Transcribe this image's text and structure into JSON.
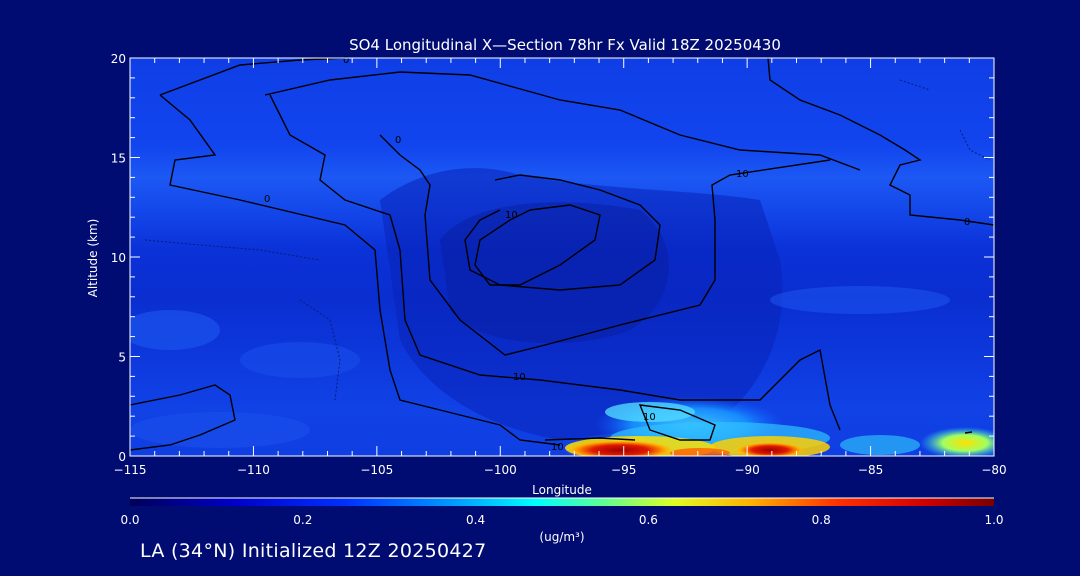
{
  "chart_data": {
    "type": "heatmap",
    "title": "SO4 Longitudinal X—Section 78hr  Fx Valid 18Z 20250430",
    "xlabel": "Longitude",
    "ylabel": "Altitude (km)",
    "xlim": [
      -115,
      -80
    ],
    "ylim": [
      0,
      20
    ],
    "xticks": [
      -115,
      -110,
      -105,
      -100,
      -95,
      -90,
      -85,
      -80
    ],
    "yticks": [
      0,
      5,
      10,
      15,
      20
    ],
    "xtick_labels": [
      "−115",
      "−110",
      "−105",
      "−100",
      "−95",
      "−90",
      "−85",
      "−80"
    ],
    "ytick_labels": [
      "0",
      "5",
      "10",
      "15",
      "20"
    ],
    "colorbar": {
      "min": 0.0,
      "max": 1.0,
      "ticks": [
        "0.0",
        "0.2",
        "0.4",
        "0.6",
        "0.8",
        "1.0"
      ],
      "unit_label": "(ug/m³)"
    },
    "contour_labels": [
      "0",
      "0",
      "0",
      "10",
      "10",
      "10",
      "10",
      "10",
      "0"
    ],
    "high_concentration_regions": [
      {
        "lon_range": [
          -97,
          -88
        ],
        "alt_range": [
          0,
          0.8
        ],
        "value": 0.9
      },
      {
        "lon_range": [
          -98,
          -87
        ],
        "alt_range": [
          0,
          2.5
        ],
        "value": 0.35
      },
      {
        "lon_range": [
          -83,
          -80
        ],
        "alt_range": [
          0,
          1.3
        ],
        "value": 0.6
      }
    ],
    "colors": {
      "background": "#000c72",
      "low": "#0017c8",
      "mid": "#0070ff",
      "high": "#c80000"
    }
  },
  "footer": "LA (34°N) Initialized 12Z 20250427"
}
